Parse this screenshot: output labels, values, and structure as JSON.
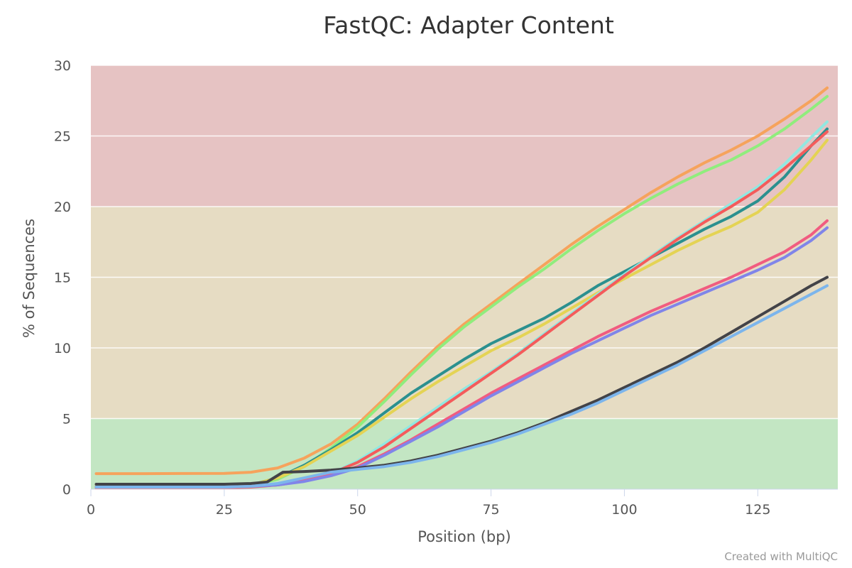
{
  "chart_data": {
    "type": "line",
    "title": "FastQC: Adapter Content",
    "xlabel": "Position (bp)",
    "ylabel": "% of Sequences",
    "xlim": [
      0,
      140
    ],
    "ylim": [
      0,
      30
    ],
    "x_ticks": [
      0,
      25,
      50,
      75,
      100,
      125
    ],
    "y_ticks": [
      0,
      5,
      10,
      15,
      20,
      25,
      30
    ],
    "bands": [
      {
        "from": 0,
        "to": 5,
        "color": "#c3e6c3"
      },
      {
        "from": 5,
        "to": 20,
        "color": "#e6dcc3"
      },
      {
        "from": 20,
        "to": 30,
        "color": "#e6c3c3"
      }
    ],
    "grid": true,
    "legend": "none",
    "credit": "Created with MultiQC",
    "series": [
      {
        "color": "#f6a35c",
        "points": [
          [
            1,
            1.1
          ],
          [
            10,
            1.1
          ],
          [
            25,
            1.12
          ],
          [
            30,
            1.2
          ],
          [
            35,
            1.5
          ],
          [
            40,
            2.2
          ],
          [
            45,
            3.2
          ],
          [
            50,
            4.6
          ],
          [
            55,
            6.4
          ],
          [
            60,
            8.3
          ],
          [
            65,
            10.1
          ],
          [
            70,
            11.7
          ],
          [
            75,
            13.1
          ],
          [
            80,
            14.5
          ],
          [
            85,
            15.9
          ],
          [
            90,
            17.3
          ],
          [
            95,
            18.6
          ],
          [
            100,
            19.8
          ],
          [
            105,
            21.0
          ],
          [
            110,
            22.1
          ],
          [
            115,
            23.1
          ],
          [
            120,
            24.0
          ],
          [
            125,
            25.0
          ],
          [
            130,
            26.2
          ],
          [
            135,
            27.5
          ],
          [
            138,
            28.4
          ]
        ]
      },
      {
        "color": "#90ed7d",
        "points": [
          [
            1,
            0.15
          ],
          [
            25,
            0.15
          ],
          [
            30,
            0.25
          ],
          [
            35,
            0.7
          ],
          [
            40,
            1.6
          ],
          [
            45,
            2.9
          ],
          [
            50,
            4.4
          ],
          [
            55,
            6.2
          ],
          [
            60,
            8.1
          ],
          [
            65,
            9.9
          ],
          [
            70,
            11.5
          ],
          [
            75,
            12.9
          ],
          [
            80,
            14.3
          ],
          [
            85,
            15.6
          ],
          [
            90,
            17.0
          ],
          [
            95,
            18.3
          ],
          [
            100,
            19.5
          ],
          [
            105,
            20.6
          ],
          [
            110,
            21.6
          ],
          [
            115,
            22.5
          ],
          [
            120,
            23.3
          ],
          [
            125,
            24.3
          ],
          [
            130,
            25.5
          ],
          [
            135,
            26.9
          ],
          [
            138,
            27.8
          ]
        ]
      },
      {
        "color": "#2b908f",
        "points": [
          [
            1,
            0.2
          ],
          [
            25,
            0.2
          ],
          [
            30,
            0.3
          ],
          [
            35,
            0.8
          ],
          [
            40,
            1.7
          ],
          [
            45,
            2.8
          ],
          [
            50,
            4.0
          ],
          [
            55,
            5.4
          ],
          [
            60,
            6.8
          ],
          [
            65,
            8.0
          ],
          [
            70,
            9.2
          ],
          [
            75,
            10.3
          ],
          [
            80,
            11.2
          ],
          [
            85,
            12.1
          ],
          [
            90,
            13.2
          ],
          [
            95,
            14.4
          ],
          [
            100,
            15.4
          ],
          [
            105,
            16.4
          ],
          [
            110,
            17.4
          ],
          [
            115,
            18.4
          ],
          [
            120,
            19.3
          ],
          [
            125,
            20.4
          ],
          [
            130,
            22.1
          ],
          [
            135,
            24.3
          ],
          [
            138,
            25.5
          ]
        ]
      },
      {
        "color": "#e4d354",
        "points": [
          [
            1,
            0.2
          ],
          [
            25,
            0.2
          ],
          [
            30,
            0.3
          ],
          [
            35,
            0.8
          ],
          [
            40,
            1.6
          ],
          [
            45,
            2.7
          ],
          [
            50,
            3.8
          ],
          [
            55,
            5.1
          ],
          [
            60,
            6.4
          ],
          [
            65,
            7.6
          ],
          [
            70,
            8.7
          ],
          [
            75,
            9.8
          ],
          [
            80,
            10.7
          ],
          [
            85,
            11.7
          ],
          [
            90,
            12.8
          ],
          [
            95,
            13.9
          ],
          [
            100,
            14.9
          ],
          [
            105,
            15.9
          ],
          [
            110,
            16.9
          ],
          [
            115,
            17.8
          ],
          [
            120,
            18.6
          ],
          [
            125,
            19.6
          ],
          [
            130,
            21.2
          ],
          [
            135,
            23.3
          ],
          [
            138,
            24.7
          ]
        ]
      },
      {
        "color": "#91e8e1",
        "points": [
          [
            1,
            0.1
          ],
          [
            25,
            0.1
          ],
          [
            30,
            0.15
          ],
          [
            35,
            0.3
          ],
          [
            40,
            0.6
          ],
          [
            45,
            1.1
          ],
          [
            50,
            2.0
          ],
          [
            55,
            3.2
          ],
          [
            60,
            4.5
          ],
          [
            65,
            5.8
          ],
          [
            70,
            7.1
          ],
          [
            75,
            8.3
          ],
          [
            80,
            9.6
          ],
          [
            85,
            11.0
          ],
          [
            90,
            12.4
          ],
          [
            95,
            13.8
          ],
          [
            100,
            15.2
          ],
          [
            105,
            16.5
          ],
          [
            110,
            17.8
          ],
          [
            115,
            19.0
          ],
          [
            120,
            20.2
          ],
          [
            125,
            21.4
          ],
          [
            130,
            23.0
          ],
          [
            135,
            24.9
          ],
          [
            138,
            26.0
          ]
        ]
      },
      {
        "color": "#f45b5b",
        "points": [
          [
            1,
            0.1
          ],
          [
            25,
            0.1
          ],
          [
            30,
            0.15
          ],
          [
            35,
            0.3
          ],
          [
            40,
            0.6
          ],
          [
            45,
            1.1
          ],
          [
            50,
            1.9
          ],
          [
            55,
            3.0
          ],
          [
            60,
            4.3
          ],
          [
            65,
            5.6
          ],
          [
            70,
            6.9
          ],
          [
            75,
            8.2
          ],
          [
            80,
            9.5
          ],
          [
            85,
            10.9
          ],
          [
            90,
            12.3
          ],
          [
            95,
            13.7
          ],
          [
            100,
            15.1
          ],
          [
            105,
            16.4
          ],
          [
            110,
            17.7
          ],
          [
            115,
            18.9
          ],
          [
            120,
            20.0
          ],
          [
            125,
            21.2
          ],
          [
            130,
            22.7
          ],
          [
            135,
            24.3
          ],
          [
            138,
            25.3
          ]
        ]
      },
      {
        "color": "#f15c80",
        "points": [
          [
            1,
            0.15
          ],
          [
            25,
            0.15
          ],
          [
            30,
            0.2
          ],
          [
            35,
            0.3
          ],
          [
            40,
            0.6
          ],
          [
            45,
            1.0
          ],
          [
            50,
            1.6
          ],
          [
            55,
            2.5
          ],
          [
            60,
            3.5
          ],
          [
            65,
            4.6
          ],
          [
            70,
            5.7
          ],
          [
            75,
            6.8
          ],
          [
            80,
            7.8
          ],
          [
            85,
            8.8
          ],
          [
            90,
            9.8
          ],
          [
            95,
            10.8
          ],
          [
            100,
            11.7
          ],
          [
            105,
            12.6
          ],
          [
            110,
            13.4
          ],
          [
            115,
            14.2
          ],
          [
            120,
            15.0
          ],
          [
            125,
            15.9
          ],
          [
            130,
            16.8
          ],
          [
            135,
            18.0
          ],
          [
            138,
            19.0
          ]
        ]
      },
      {
        "color": "#8085e9",
        "points": [
          [
            1,
            0.15
          ],
          [
            25,
            0.15
          ],
          [
            30,
            0.2
          ],
          [
            35,
            0.3
          ],
          [
            40,
            0.55
          ],
          [
            45,
            0.95
          ],
          [
            50,
            1.5
          ],
          [
            55,
            2.4
          ],
          [
            60,
            3.4
          ],
          [
            65,
            4.4
          ],
          [
            70,
            5.5
          ],
          [
            75,
            6.6
          ],
          [
            80,
            7.6
          ],
          [
            85,
            8.6
          ],
          [
            90,
            9.6
          ],
          [
            95,
            10.5
          ],
          [
            100,
            11.4
          ],
          [
            105,
            12.3
          ],
          [
            110,
            13.1
          ],
          [
            115,
            13.9
          ],
          [
            120,
            14.7
          ],
          [
            125,
            15.5
          ],
          [
            130,
            16.4
          ],
          [
            135,
            17.6
          ],
          [
            138,
            18.5
          ]
        ]
      },
      {
        "color": "#434348",
        "points": [
          [
            1,
            0.35
          ],
          [
            25,
            0.35
          ],
          [
            30,
            0.4
          ],
          [
            33,
            0.5
          ],
          [
            36,
            1.2
          ],
          [
            40,
            1.25
          ],
          [
            45,
            1.35
          ],
          [
            50,
            1.5
          ],
          [
            55,
            1.7
          ],
          [
            60,
            2.0
          ],
          [
            65,
            2.4
          ],
          [
            70,
            2.9
          ],
          [
            75,
            3.4
          ],
          [
            80,
            4.0
          ],
          [
            85,
            4.7
          ],
          [
            90,
            5.5
          ],
          [
            95,
            6.3
          ],
          [
            100,
            7.2
          ],
          [
            105,
            8.1
          ],
          [
            110,
            9.0
          ],
          [
            115,
            10.0
          ],
          [
            120,
            11.1
          ],
          [
            125,
            12.2
          ],
          [
            130,
            13.3
          ],
          [
            135,
            14.4
          ],
          [
            138,
            15.0
          ]
        ]
      },
      {
        "color": "#7cb5ec",
        "points": [
          [
            1,
            0.15
          ],
          [
            25,
            0.15
          ],
          [
            30,
            0.2
          ],
          [
            35,
            0.4
          ],
          [
            40,
            0.8
          ],
          [
            45,
            1.2
          ],
          [
            50,
            1.4
          ],
          [
            55,
            1.6
          ],
          [
            60,
            1.9
          ],
          [
            65,
            2.3
          ],
          [
            70,
            2.8
          ],
          [
            75,
            3.3
          ],
          [
            80,
            3.9
          ],
          [
            85,
            4.6
          ],
          [
            90,
            5.3
          ],
          [
            95,
            6.1
          ],
          [
            100,
            7.0
          ],
          [
            105,
            7.9
          ],
          [
            110,
            8.8
          ],
          [
            115,
            9.8
          ],
          [
            120,
            10.8
          ],
          [
            125,
            11.8
          ],
          [
            130,
            12.8
          ],
          [
            135,
            13.8
          ],
          [
            138,
            14.4
          ]
        ]
      }
    ]
  }
}
